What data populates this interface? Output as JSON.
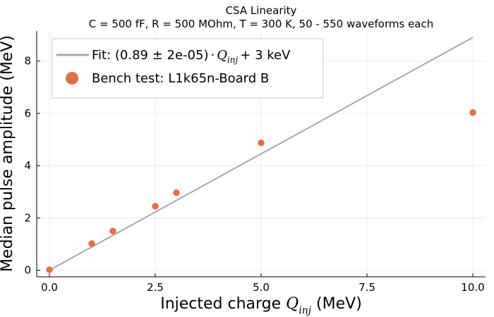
{
  "chart_data": {
    "type": "scatter",
    "title": "CSA Linearity",
    "subtitle": "C = 500 fF, R = 500 MOhm, T = 300 K,  50 - 550 waveforms  each",
    "xlabel": {
      "prefix": "Injected charge ",
      "symbol": "Q",
      "subscript": "inj",
      "suffix": " (MeV)"
    },
    "ylabel": "Median pulse amplitude (MeV)",
    "xlim": [
      -0.3,
      10.3
    ],
    "ylim": [
      -0.25,
      9.15
    ],
    "xticks": [
      {
        "value": 0,
        "label": "0.0"
      },
      {
        "value": 2.5,
        "label": "2.5"
      },
      {
        "value": 5,
        "label": "5.0"
      },
      {
        "value": 7.5,
        "label": "7.5"
      },
      {
        "value": 10,
        "label": "10.0"
      }
    ],
    "yticks": [
      {
        "value": 0,
        "label": "0"
      },
      {
        "value": 2,
        "label": "2"
      },
      {
        "value": 4,
        "label": "4"
      },
      {
        "value": 6,
        "label": "6"
      },
      {
        "value": 8,
        "label": "8"
      }
    ],
    "grid": true,
    "legend_position": "top-left",
    "fit": {
      "label_prefix": "Fit: (0.89 ± 2e-05)",
      "label_dot": "·",
      "label_symbol": "Q",
      "label_subscript": "inj",
      "label_suffix": "+ 3 keV",
      "slope": 0.89,
      "intercept": 0.003,
      "x_range": [
        0,
        10
      ],
      "color": "#a8a8a8"
    },
    "series": [
      {
        "name": "Bench test: L1k65n-Board B",
        "color": "#e26f46",
        "x": [
          0.0,
          1.0,
          1.5,
          2.5,
          3.0,
          5.0,
          10.0
        ],
        "y": [
          0.02,
          1.02,
          1.5,
          2.45,
          2.97,
          4.87,
          6.03
        ]
      }
    ]
  }
}
